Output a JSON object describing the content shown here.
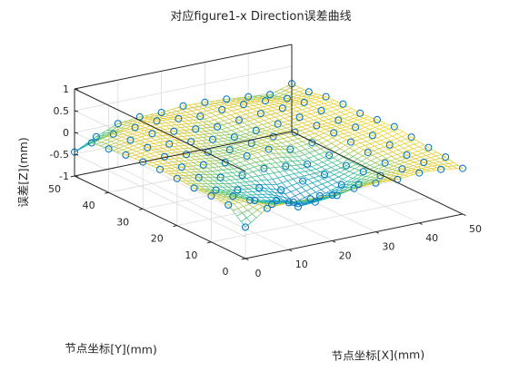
{
  "chart_data": {
    "type": "surface-scatter-3d",
    "title": "对应figure1-x Direction误差曲线",
    "xlabel": "节点坐标[X](mm)",
    "ylabel": "节点坐标[Y](mm)",
    "zlabel": "误差[Z](mm)",
    "xlim": [
      0,
      50
    ],
    "ylim": [
      0,
      50
    ],
    "zlim": [
      -1,
      1
    ],
    "xticks": [
      "0",
      "10",
      "20",
      "30",
      "40",
      "50"
    ],
    "yticks": [
      "0",
      "10",
      "20",
      "30",
      "40",
      "50"
    ],
    "zticks": [
      "-1",
      "-0.5",
      "0",
      "0.5",
      "1"
    ],
    "grid": true,
    "colormap": "parula",
    "marker": "circle",
    "marker_color": "#0072bd",
    "x": [
      0,
      5,
      10,
      15,
      20,
      25,
      30,
      35,
      40,
      45,
      50
    ],
    "y": [
      0,
      5,
      10,
      15,
      20,
      25,
      30,
      35,
      40,
      45,
      50
    ],
    "z": [
      [
        -0.28,
        0.05,
        0.08,
        0.06,
        0.05,
        0.1,
        0.12,
        0.1,
        0.15,
        0.13,
        0.05
      ],
      [
        0.04,
        0.05,
        -0.15,
        -0.2,
        -0.3,
        -0.25,
        -0.1,
        0.0,
        0.05,
        0.1,
        0.12
      ],
      [
        0.06,
        -0.05,
        -0.25,
        -0.35,
        -0.6,
        -0.45,
        -0.3,
        -0.1,
        0.0,
        0.08,
        0.15
      ],
      [
        0.05,
        -0.1,
        -0.2,
        -0.25,
        -0.4,
        -0.3,
        -0.25,
        -0.15,
        0.05,
        0.12,
        0.2
      ],
      [
        0.08,
        0.0,
        -0.1,
        -0.15,
        -0.1,
        -0.15,
        -0.2,
        -0.1,
        0.1,
        0.15,
        0.25
      ],
      [
        0.1,
        0.05,
        0.0,
        -0.05,
        0.0,
        0.05,
        -0.05,
        0.0,
        0.12,
        0.15,
        0.22
      ],
      [
        0.08,
        0.1,
        0.05,
        0.0,
        -0.05,
        0.0,
        0.05,
        0.05,
        0.1,
        0.12,
        0.18
      ],
      [
        0.05,
        0.12,
        0.1,
        0.05,
        0.0,
        -0.05,
        0.0,
        0.05,
        0.1,
        0.15,
        0.2
      ],
      [
        0.0,
        0.1,
        0.15,
        0.1,
        0.05,
        0.0,
        0.05,
        0.1,
        0.12,
        0.15,
        0.18
      ],
      [
        -0.05,
        0.05,
        0.1,
        0.15,
        0.1,
        0.05,
        0.1,
        0.12,
        0.1,
        0.05,
        0.1
      ],
      [
        -0.45,
        -0.2,
        0.0,
        0.05,
        0.05,
        0.1,
        0.08,
        0.05,
        0.0,
        -0.05,
        0.1
      ]
    ]
  }
}
